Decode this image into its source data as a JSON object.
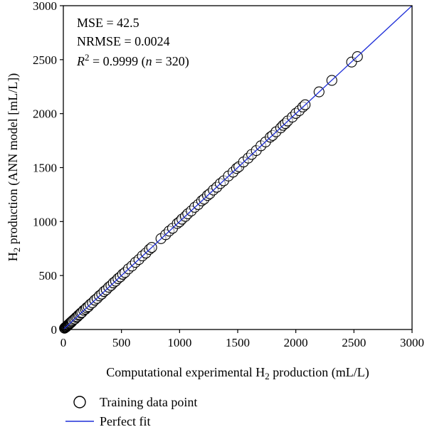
{
  "chart_data": {
    "type": "scatter",
    "xlabel": "Computational experimental H2 production (mL/L)",
    "xlabel_parts": {
      "pre": "Computational experimental H",
      "sub": "2",
      "post": " production (mL/L)"
    },
    "ylabel": "H2 production (ANN model [mL/L])",
    "ylabel_parts": {
      "pre": "H",
      "sub": "2",
      "post": " production (ANN model [mL/L])"
    },
    "xlim": [
      0,
      3000
    ],
    "ylim": [
      0,
      3000
    ],
    "xticks": [
      0,
      500,
      1000,
      1500,
      2000,
      2500,
      3000
    ],
    "yticks": [
      0,
      500,
      1000,
      1500,
      2000,
      2500,
      3000
    ],
    "grid": false,
    "stats": {
      "mse": "MSE = 42.5",
      "nrmse": "NRMSE = 0.0024",
      "r2_label": "R",
      "r2_exp": "2",
      "r2_value": " = 0.9999 (",
      "n_label": "n",
      "n_value": " = 320)"
    },
    "legend": {
      "placement": "bottom",
      "entries": [
        "Training data point",
        "Perfect fit"
      ]
    },
    "series": [
      {
        "name": "Training data point",
        "kind": "scatter",
        "color": "#000000",
        "x": [
          10,
          15,
          20,
          25,
          30,
          35,
          40,
          45,
          50,
          55,
          60,
          65,
          70,
          75,
          80,
          90,
          100,
          110,
          120,
          130,
          140,
          150,
          160,
          175,
          190,
          200,
          215,
          230,
          250,
          270,
          290,
          310,
          330,
          350,
          370,
          390,
          410,
          430,
          450,
          470,
          490,
          510,
          530,
          560,
          590,
          620,
          650,
          680,
          710,
          740,
          760,
          840,
          880,
          910,
          940,
          980,
          1000,
          1020,
          1050,
          1070,
          1100,
          1130,
          1160,
          1190,
          1210,
          1240,
          1260,
          1290,
          1320,
          1350,
          1380,
          1420,
          1460,
          1490,
          1510,
          1550,
          1590,
          1620,
          1660,
          1700,
          1740,
          1780,
          1800,
          1830,
          1870,
          1890,
          1910,
          1930,
          1970,
          2000,
          2030,
          2060,
          2080,
          2200,
          2310,
          2480,
          2530
        ],
        "y": [
          12,
          18,
          22,
          24,
          30,
          36,
          42,
          44,
          52,
          55,
          62,
          63,
          72,
          74,
          82,
          92,
          98,
          112,
          118,
          132,
          138,
          152,
          158,
          178,
          188,
          202,
          212,
          232,
          248,
          272,
          288,
          312,
          328,
          352,
          368,
          392,
          408,
          432,
          448,
          472,
          488,
          512,
          528,
          562,
          588,
          622,
          648,
          682,
          708,
          742,
          760,
          842,
          878,
          912,
          938,
          982,
          998,
          1022,
          1048,
          1072,
          1098,
          1132,
          1158,
          1192,
          1208,
          1242,
          1258,
          1292,
          1318,
          1352,
          1378,
          1422,
          1458,
          1492,
          1508,
          1552,
          1588,
          1622,
          1658,
          1702,
          1738,
          1782,
          1798,
          1832,
          1868,
          1892,
          1908,
          1932,
          1968,
          2002,
          2028,
          2062,
          2082,
          2202,
          2308,
          2478,
          2528
        ]
      },
      {
        "name": "Perfect fit",
        "kind": "line",
        "color": "#1f2fd8",
        "x": [
          0,
          3000
        ],
        "y": [
          0,
          3000
        ]
      }
    ]
  }
}
